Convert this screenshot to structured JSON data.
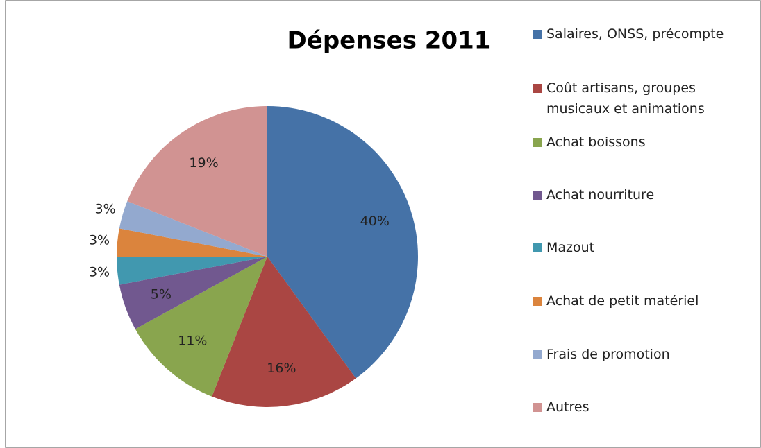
{
  "chart_data": {
    "type": "pie",
    "title": "Dépenses 2011",
    "categories": [
      "Salaires, ONSS, précompte",
      "Coût artisans, groupes musicaux et animations",
      "Achat boissons",
      "Achat nourriture",
      "Mazout",
      "Achat de petit matériel",
      "Frais de promotion",
      "Autres"
    ],
    "values": [
      40,
      16,
      11,
      5,
      3,
      3,
      3,
      19
    ],
    "value_labels": [
      "40%",
      "16%",
      "11%",
      "5%",
      "3%",
      "3%",
      "3%",
      "19%"
    ],
    "colors": [
      "#4572a7",
      "#aa4643",
      "#89a54e",
      "#71588f",
      "#4198af",
      "#db843d",
      "#93a9cf",
      "#d19392"
    ],
    "legend": "right"
  }
}
